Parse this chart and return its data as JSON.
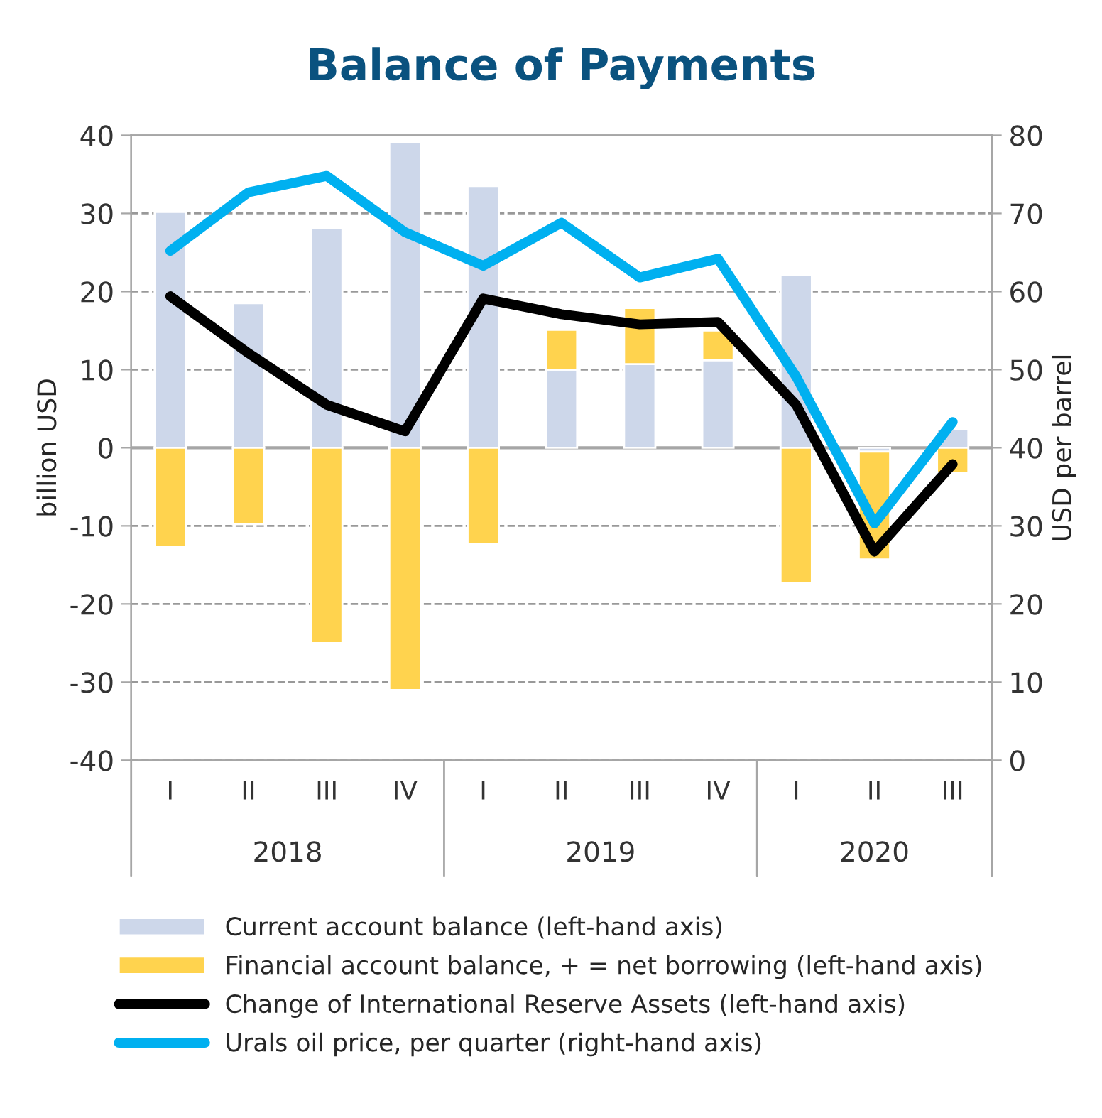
{
  "chart_data": {
    "type": "bar",
    "title": "Balance of Payments",
    "categories": [
      "I",
      "II",
      "III",
      "IV",
      "I",
      "II",
      "III",
      "IV",
      "I",
      "II",
      "III"
    ],
    "series": [
      {
        "name": "Current account balance (left-hand axis)",
        "type": "bar",
        "color": "#cdd7ea",
        "values": [
          30.2,
          18.5,
          28.1,
          39.1,
          33.5,
          10.0,
          10.7,
          11.2,
          22.1,
          -0.5,
          2.4
        ]
      },
      {
        "name": "Financial account balance, + = net borrowing (left-hand axis)",
        "type": "bar",
        "color": "#ffd34e",
        "values": [
          -12.7,
          -9.8,
          -25.0,
          -31.0,
          -12.3,
          5.1,
          7.2,
          3.8,
          -17.3,
          -13.8,
          -3.2
        ]
      },
      {
        "name": "Change of International Reserve Assets (left-hand axis)",
        "type": "line",
        "color": "#000000",
        "values": [
          19.4,
          12.1,
          5.5,
          2.1,
          19.1,
          17.1,
          15.8,
          16.1,
          5.5,
          -13.3,
          -2.1
        ]
      },
      {
        "name": "Urals oil price, per quarter (right-hand axis)",
        "type": "line",
        "axis": "y2",
        "color": "#00b0f0",
        "values": [
          65.2,
          72.7,
          74.8,
          67.6,
          63.3,
          68.8,
          61.8,
          64.2,
          49.1,
          30.3,
          43.3
        ]
      }
    ],
    "ylabel": "billion USD",
    "y2label": "USD per barrel",
    "ylim": [
      -40,
      40
    ],
    "yticks": [
      -40,
      -30,
      -20,
      -10,
      0,
      10,
      20,
      30,
      40
    ],
    "y2lim": [
      0,
      80
    ],
    "y2ticks": [
      0,
      10,
      20,
      30,
      40,
      50,
      60,
      70,
      80
    ],
    "ref_lines": [
      {
        "axis": "y",
        "value": 0,
        "label": null,
        "color": "#a6a6a6"
      }
    ],
    "annotations": [
      "2018",
      "2019",
      "2020"
    ],
    "stacked": true,
    "grid": "y",
    "legend": "bottom",
    "line_style": "solid",
    "marker": "none"
  }
}
